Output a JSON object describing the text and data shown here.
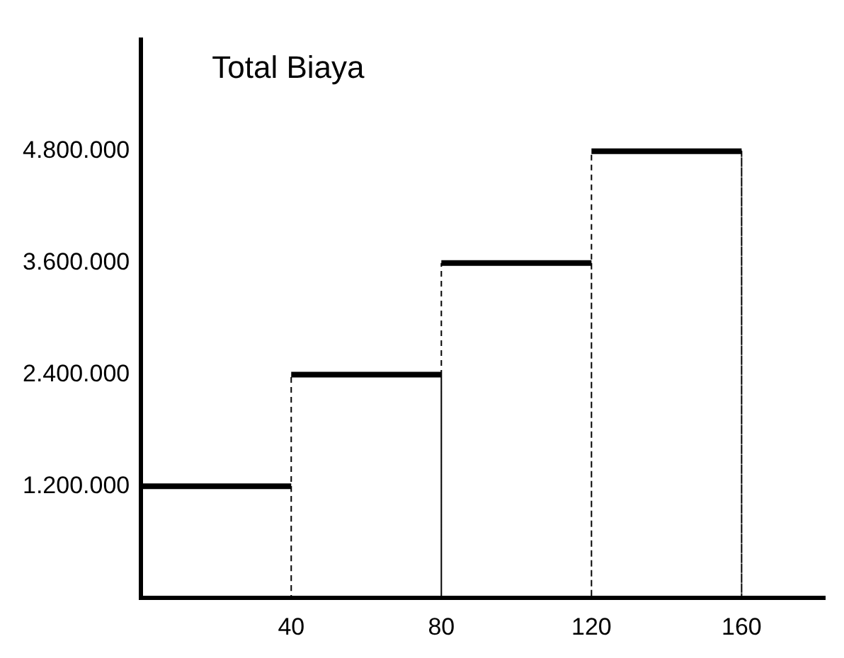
{
  "chart_data": {
    "type": "line",
    "title": "Total Biaya",
    "x": [
      0,
      40,
      40,
      40,
      80,
      80,
      80,
      120,
      120,
      120,
      160,
      160
    ],
    "series": [
      {
        "color": "#000000",
        "values": [
          1200000,
          1200000,
          0,
          2400000,
          2400000,
          0,
          3600000,
          3600000,
          0,
          4800000,
          4800000,
          0
        ]
      }
    ],
    "xlim": [
      0,
      182
    ],
    "xticks": [
      40,
      80,
      120,
      160
    ],
    "ylim": [
      0,
      6000000
    ],
    "yticks": [
      {
        "value": 1200000,
        "label": "1.200.000"
      },
      {
        "value": 2400000,
        "label": "2.400.000"
      },
      {
        "value": 3600000,
        "label": "3.600.000"
      },
      {
        "value": 4800000,
        "label": "4.800.000"
      }
    ],
    "grid": false,
    "legend": false,
    "marker": "none"
  }
}
